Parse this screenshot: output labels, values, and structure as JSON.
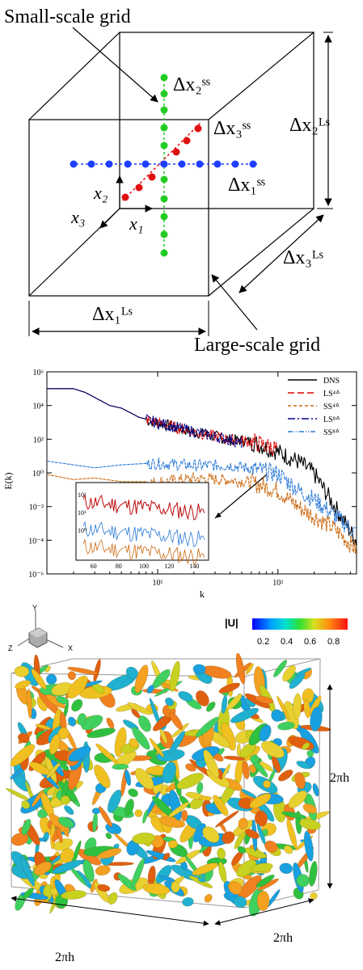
{
  "grid_diagram": {
    "small_scale_label": "Small-scale grid",
    "large_scale_label": "Large-scale grid",
    "dx2_ss": "Δx₂ˢˢ",
    "dx3_ss": "Δx₃ˢˢ",
    "dx1_ss": "Δx₁ˢˢ",
    "dx2_ls": "Δx₂ᴸˢ",
    "dx3_ls": "Δx₃ᴸˢ",
    "dx1_ls": "Δx₁ᴸˢ",
    "axis_x1": "x₁",
    "axis_x2": "x₂",
    "axis_x3": "x₃",
    "colors": {
      "x1_points": "#1f3fff",
      "x2_points": "#22cc22",
      "x3_points": "#e01010"
    }
  },
  "chart_data": {
    "type": "line",
    "title": "",
    "xlabel": "k",
    "ylabel": "E(k)",
    "xscale": "log",
    "yscale": "log",
    "xlim": [
      1.2,
      450
    ],
    "ylim": [
      1e-06,
      1000000.0
    ],
    "x_ticks": [
      "10¹",
      "10²"
    ],
    "y_ticks": [
      "10⁶",
      "10⁴",
      "10²",
      "10⁰",
      "10⁻²",
      "10⁻⁴",
      "10⁻⁶"
    ],
    "legend_position": "top-right",
    "series": [
      {
        "name": "DNS",
        "color": "#000000",
        "dash": "solid",
        "x": [
          1.2,
          2,
          2.5,
          3,
          4,
          5,
          7,
          10,
          20,
          40,
          60,
          100,
          150,
          200,
          300,
          450
        ],
        "y": [
          100000.0,
          100000.0,
          60000.0,
          30000.0,
          10000.0,
          7000.0,
          2000.0,
          1000.0,
          300,
          100,
          80,
          20,
          5,
          1,
          0.01,
          0.0001
        ]
      },
      {
        "name": "LS⁴ᐞ",
        "color": "#dd0000",
        "dash": "8,4",
        "x": [
          1.2,
          2,
          2.5,
          3,
          4,
          5,
          7,
          10,
          20,
          40,
          60,
          100
        ],
        "y": [
          100000.0,
          100000.0,
          60000.0,
          30000.0,
          10000.0,
          7000.0,
          2000.0,
          1000.0,
          300,
          100,
          80,
          30
        ]
      },
      {
        "name": "SS⁴ᐞ",
        "color": "#cc6a10",
        "dash": "4,3",
        "x": [
          1.2,
          2,
          3,
          5,
          10,
          20,
          40,
          60,
          100,
          150,
          200,
          300,
          450
        ],
        "y": [
          0.8,
          0.4,
          0.5,
          0.3,
          0.3,
          0.5,
          0.4,
          0.3,
          0.1,
          0.01,
          0.003,
          0.0005,
          3e-05
        ]
      },
      {
        "name": "LS⁸ᐞ",
        "color": "#00008b",
        "dash": "9,3,2,3",
        "x": [
          1.2,
          2,
          2.5,
          3,
          4,
          5,
          7,
          10,
          20,
          40,
          50
        ],
        "y": [
          100000.0,
          100000.0,
          60000.0,
          30000.0,
          10000.0,
          7000.0,
          2000.0,
          1000.0,
          300,
          100,
          60
        ]
      },
      {
        "name": "SS⁸ᐞ",
        "color": "#2a79d6",
        "dash": "6,2,1,2,1,2",
        "x": [
          1.2,
          2,
          3,
          5,
          10,
          20,
          40,
          60,
          100,
          150,
          200,
          300,
          450
        ],
        "y": [
          5,
          3,
          2,
          3,
          4,
          3,
          3,
          2,
          1,
          0.1,
          0.03,
          0.003,
          0.0003
        ]
      }
    ],
    "inset": {
      "xlim": [
        50,
        150
      ],
      "x_ticks": [
        "60",
        "80",
        "100",
        "120",
        "140"
      ],
      "y_ticks": [
        "10²",
        "10¹",
        "10⁰"
      ]
    }
  },
  "visualization": {
    "colorbar_title": "|U|",
    "colorbar_ticks": [
      "0.2",
      "0.4",
      "0.6",
      "0.8"
    ],
    "axis_labels": {
      "y": "Y",
      "z": "Z",
      "x": "X"
    },
    "dim_right": "2πh",
    "dim_bottom_left": "2πh",
    "dim_bottom_right": "2πh"
  }
}
